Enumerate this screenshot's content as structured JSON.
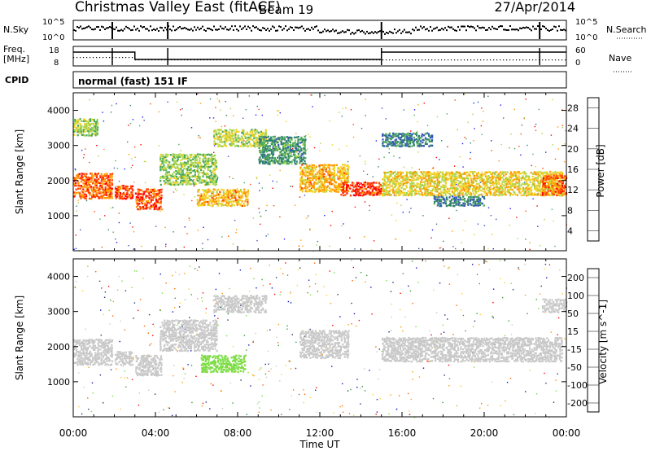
{
  "header": {
    "station": "Christmas Valley East (fitACF)",
    "beam": "Beam 19",
    "date": "27/Apr/2014"
  },
  "strip_labels": {
    "nsky": "N.Sky",
    "freq": "Freq.",
    "freq_unit": "[MHz]",
    "cpid": "CPID",
    "nsearch": "N.Search",
    "nave": "Nave",
    "nsky_ticks": [
      "10^5",
      "10^0"
    ],
    "freq_ticks": [
      "18",
      "8"
    ],
    "nave_ticks": [
      "60",
      "0"
    ],
    "cpid_name": "normal (fast) 151 IF"
  },
  "chart_data": [
    {
      "type": "heatmap",
      "panel": "power",
      "ylabel": "Slant Range [km]",
      "xlabel": "Time UT",
      "x_ticks": [
        "00:00",
        "04:00",
        "08:00",
        "12:00",
        "16:00",
        "20:00",
        "00:00"
      ],
      "y_ticks": [
        1000,
        2000,
        3000,
        4000
      ],
      "ylim": [
        0,
        4500
      ],
      "colorbar": {
        "label": "Power [dB]",
        "ticks": [
          28,
          24,
          20,
          16,
          12,
          8,
          4
        ],
        "range": [
          0,
          30
        ]
      },
      "bands": [
        {
          "t0": 0.0,
          "t1": 1.9,
          "r0": 1500,
          "r1": 2250,
          "power": 24
        },
        {
          "t0": 0.0,
          "t1": 1.2,
          "r0": 3300,
          "r1": 3800,
          "power": 14
        },
        {
          "t0": 2.0,
          "t1": 2.9,
          "r0": 1500,
          "r1": 1900,
          "power": 26
        },
        {
          "t0": 3.0,
          "t1": 4.3,
          "r0": 1200,
          "r1": 1800,
          "power": 25
        },
        {
          "t0": 4.2,
          "t1": 7.0,
          "r0": 1900,
          "r1": 2800,
          "power": 14
        },
        {
          "t0": 6.8,
          "t1": 9.4,
          "r0": 3000,
          "r1": 3500,
          "power": 16
        },
        {
          "t0": 6.0,
          "t1": 8.5,
          "r0": 1300,
          "r1": 1800,
          "power": 20
        },
        {
          "t0": 9.0,
          "t1": 11.3,
          "r0": 2500,
          "r1": 3300,
          "power": 10
        },
        {
          "t0": 11.0,
          "t1": 13.4,
          "r0": 1700,
          "r1": 2500,
          "power": 20
        },
        {
          "t0": 13.0,
          "t1": 15.0,
          "r0": 1600,
          "r1": 2000,
          "power": 26
        },
        {
          "t0": 15.0,
          "t1": 23.8,
          "r0": 1600,
          "r1": 2300,
          "power": 18
        },
        {
          "t0": 15.0,
          "t1": 17.5,
          "r0": 3000,
          "r1": 3400,
          "power": 8
        },
        {
          "t0": 17.5,
          "t1": 20.0,
          "r0": 1300,
          "r1": 1600,
          "power": 8
        },
        {
          "t0": 22.8,
          "t1": 24.0,
          "r0": 1600,
          "r1": 2200,
          "power": 24
        }
      ]
    },
    {
      "type": "heatmap",
      "panel": "velocity",
      "ylabel": "Slant Range [km]",
      "xlabel": "Time UT",
      "x_ticks": [
        "00:00",
        "04:00",
        "08:00",
        "12:00",
        "16:00",
        "20:00",
        "00:00"
      ],
      "y_ticks": [
        1000,
        2000,
        3000,
        4000
      ],
      "ylim": [
        0,
        4500
      ],
      "colorbar": {
        "label": "Velocity [m s^-1]",
        "ticks": [
          200,
          100,
          50,
          15,
          -15,
          -50,
          -100,
          -200
        ],
        "range": [
          -250,
          250
        ]
      },
      "bands": [
        {
          "t0": 0.0,
          "t1": 1.9,
          "r0": 1500,
          "r1": 2250,
          "velocity": 0
        },
        {
          "t0": 2.0,
          "t1": 2.9,
          "r0": 1500,
          "r1": 1900,
          "velocity": 0
        },
        {
          "t0": 3.0,
          "t1": 4.3,
          "r0": 1200,
          "r1": 1800,
          "velocity": -10
        },
        {
          "t0": 4.2,
          "t1": 7.0,
          "r0": 1900,
          "r1": 2800,
          "velocity": 5
        },
        {
          "t0": 6.8,
          "t1": 9.4,
          "r0": 3000,
          "r1": 3500,
          "velocity": 0
        },
        {
          "t0": 6.2,
          "t1": 8.4,
          "r0": 1300,
          "r1": 1800,
          "velocity": 60
        },
        {
          "t0": 11.0,
          "t1": 13.4,
          "r0": 1700,
          "r1": 2500,
          "velocity": 0
        },
        {
          "t0": 15.0,
          "t1": 23.8,
          "r0": 1600,
          "r1": 2300,
          "velocity": 0
        },
        {
          "t0": 22.8,
          "t1": 24.0,
          "r0": 3000,
          "r1": 3400,
          "velocity": 0
        }
      ]
    }
  ],
  "colors": {
    "power_scale": [
      "#1a1aff",
      "#3355bb",
      "#2f7f6f",
      "#4caa55",
      "#a8d44a",
      "#f0d020",
      "#ff9900",
      "#ff4400",
      "#ff0000"
    ],
    "velocity_scale": [
      "#ff0000",
      "#ff6600",
      "#ff9900",
      "#ffcc33",
      "#c8c8c8",
      "#7cdd44",
      "#3a9a3a",
      "#22336b",
      "#1111bb"
    ]
  }
}
